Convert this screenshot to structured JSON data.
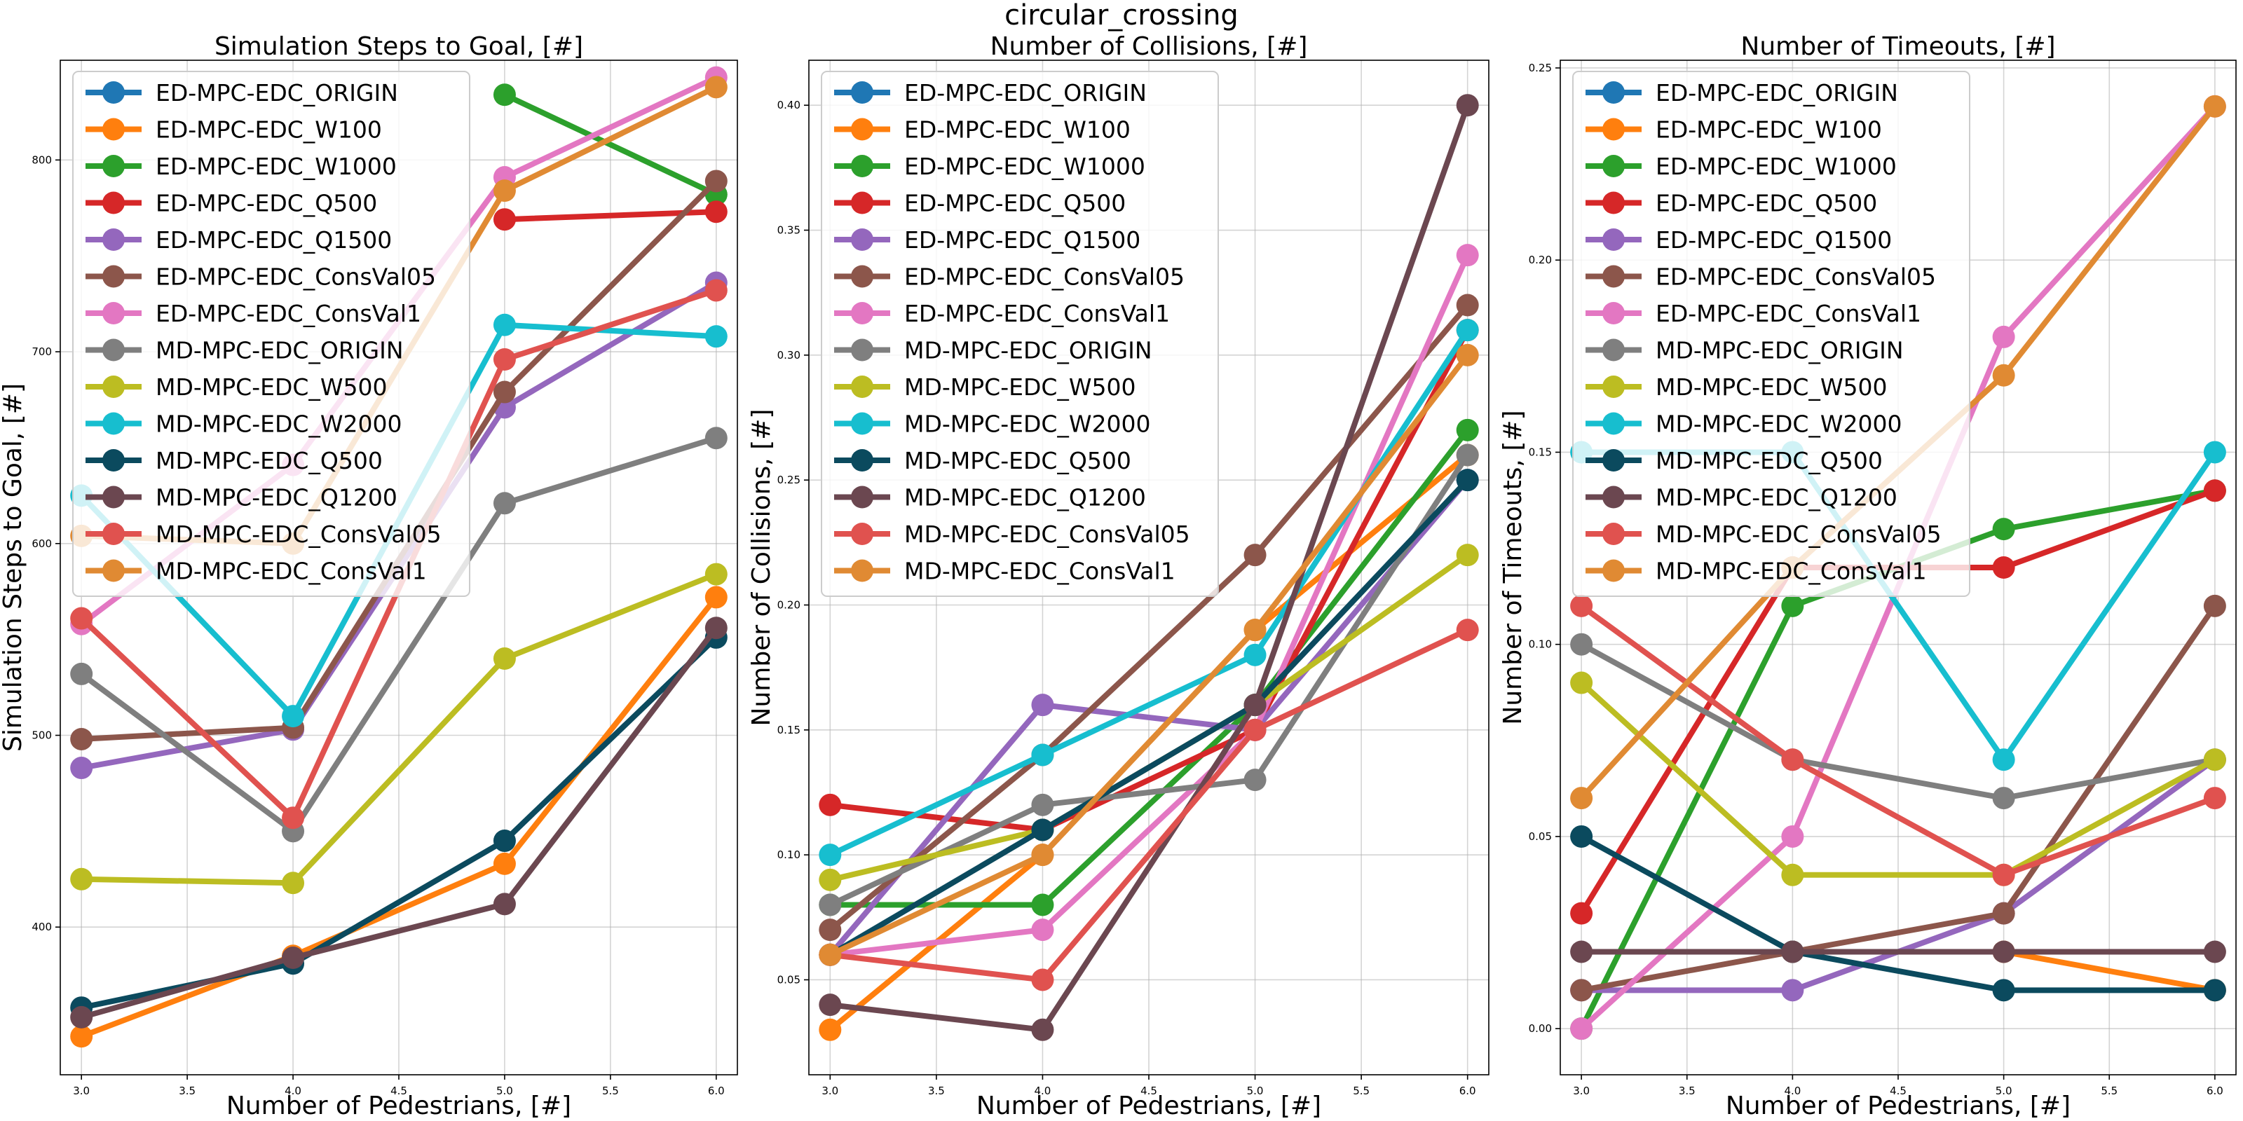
{
  "suptitle": "circular_crossing",
  "colors": {
    "ED-MPC-EDC_ORIGIN": "#1f77b4",
    "ED-MPC-EDC_W100": "#ff7f0e",
    "ED-MPC-EDC_W1000": "#2ca02c",
    "ED-MPC-EDC_Q500": "#d62728",
    "ED-MPC-EDC_Q1500": "#9467bd",
    "ED-MPC-EDC_ConsVal05": "#8c564b",
    "ED-MPC-EDC_ConsVal1": "#e377c2",
    "MD-MPC-EDC_ORIGIN": "#7f7f7f",
    "MD-MPC-EDC_W500": "#bcbd22",
    "MD-MPC-EDC_W2000": "#17becf",
    "MD-MPC-EDC_Q500": "#0b4a5e",
    "MD-MPC-EDC_Q1200": "#6b4750",
    "MD-MPC-EDC_ConsVal05": "#e0524f",
    "MD-MPC-EDC_ConsVal1": "#e08a33"
  },
  "chart_data": [
    {
      "type": "line",
      "title": "Simulation Steps to Goal, [#]",
      "xlabel": "Number of Pedestrians, [#]",
      "ylabel": "Simulation Steps to Goal, [#]",
      "x": [
        3,
        4,
        5,
        6
      ],
      "xlim": [
        2.9,
        6.1
      ],
      "ylim": [
        323,
        852
      ],
      "xticks": [
        "3.0",
        "3.5",
        "4.0",
        "4.5",
        "5.0",
        "5.5",
        "6.0"
      ],
      "yticks": [
        "400",
        "500",
        "600",
        "700",
        "800"
      ],
      "grid": true,
      "legend": "upper-left",
      "series": [
        {
          "name": "ED-MPC-EDC_ORIGIN",
          "values": [
            null,
            null,
            null,
            null
          ]
        },
        {
          "name": "ED-MPC-EDC_W100",
          "values": [
            343,
            385,
            433,
            572
          ]
        },
        {
          "name": "ED-MPC-EDC_W1000",
          "values": [
            null,
            null,
            834,
            782
          ]
        },
        {
          "name": "ED-MPC-EDC_Q500",
          "values": [
            null,
            null,
            769,
            773
          ]
        },
        {
          "name": "ED-MPC-EDC_Q1500",
          "values": [
            483,
            503,
            671,
            736
          ]
        },
        {
          "name": "ED-MPC-EDC_ConsVal05",
          "values": [
            498,
            504,
            679,
            789
          ]
        },
        {
          "name": "ED-MPC-EDC_ConsVal1",
          "values": [
            558,
            641,
            791,
            843
          ]
        },
        {
          "name": "MD-MPC-EDC_ORIGIN",
          "values": [
            532,
            450,
            621,
            655
          ]
        },
        {
          "name": "MD-MPC-EDC_W500",
          "values": [
            425,
            423,
            540,
            584
          ]
        },
        {
          "name": "MD-MPC-EDC_W2000",
          "values": [
            625,
            510,
            714,
            708
          ]
        },
        {
          "name": "MD-MPC-EDC_Q500",
          "values": [
            358,
            381,
            445,
            551
          ]
        },
        {
          "name": "MD-MPC-EDC_Q1200",
          "values": [
            353,
            384,
            412,
            556
          ]
        },
        {
          "name": "MD-MPC-EDC_ConsVal05",
          "values": [
            561,
            457,
            696,
            732
          ]
        },
        {
          "name": "MD-MPC-EDC_ConsVal1",
          "values": [
            604,
            600,
            784,
            838
          ]
        }
      ]
    },
    {
      "type": "line",
      "title": "Number of Collisions, [#]",
      "xlabel": "Number of Pedestrians, [#]",
      "ylabel": "Number of Collisions, [#]",
      "x": [
        3,
        4,
        5,
        6
      ],
      "xlim": [
        2.9,
        6.1
      ],
      "ylim": [
        0.012,
        0.418
      ],
      "xticks": [
        "3.0",
        "3.5",
        "4.0",
        "4.5",
        "5.0",
        "5.5",
        "6.0"
      ],
      "yticks": [
        "0.05",
        "0.10",
        "0.15",
        "0.20",
        "0.25",
        "0.30",
        "0.35",
        "0.40"
      ],
      "grid": true,
      "legend": "upper-left",
      "series": [
        {
          "name": "ED-MPC-EDC_ORIGIN",
          "values": [
            null,
            null,
            null,
            null
          ]
        },
        {
          "name": "ED-MPC-EDC_W100",
          "values": [
            0.03,
            0.1,
            0.19,
            0.26
          ]
        },
        {
          "name": "ED-MPC-EDC_W1000",
          "values": [
            0.08,
            0.08,
            0.16,
            0.27
          ]
        },
        {
          "name": "ED-MPC-EDC_Q500",
          "values": [
            0.12,
            0.11,
            0.15,
            0.31
          ]
        },
        {
          "name": "ED-MPC-EDC_Q1500",
          "values": [
            0.06,
            0.16,
            0.15,
            0.25
          ]
        },
        {
          "name": "ED-MPC-EDC_ConsVal05",
          "values": [
            0.07,
            0.14,
            0.22,
            0.32
          ]
        },
        {
          "name": "ED-MPC-EDC_ConsVal1",
          "values": [
            0.06,
            0.07,
            0.15,
            0.34
          ]
        },
        {
          "name": "MD-MPC-EDC_ORIGIN",
          "values": [
            0.08,
            0.12,
            0.13,
            0.26
          ]
        },
        {
          "name": "MD-MPC-EDC_W500",
          "values": [
            0.09,
            0.11,
            0.16,
            0.22
          ]
        },
        {
          "name": "MD-MPC-EDC_W2000",
          "values": [
            0.1,
            0.14,
            0.18,
            0.31
          ]
        },
        {
          "name": "MD-MPC-EDC_Q500",
          "values": [
            0.06,
            0.11,
            0.16,
            0.25
          ]
        },
        {
          "name": "MD-MPC-EDC_Q1200",
          "values": [
            0.04,
            0.03,
            0.16,
            0.4
          ]
        },
        {
          "name": "MD-MPC-EDC_ConsVal05",
          "values": [
            0.06,
            0.05,
            0.15,
            0.19
          ]
        },
        {
          "name": "MD-MPC-EDC_ConsVal1",
          "values": [
            0.06,
            0.1,
            0.19,
            0.3
          ]
        }
      ]
    },
    {
      "type": "line",
      "title": "Number of Timeouts, [#]",
      "xlabel": "Number of Pedestrians, [#]",
      "ylabel": "Number of Timeouts, [#]",
      "x": [
        3,
        4,
        5,
        6
      ],
      "xlim": [
        2.9,
        6.1
      ],
      "ylim": [
        -0.012,
        0.252
      ],
      "xticks": [
        "3.0",
        "3.5",
        "4.0",
        "4.5",
        "5.0",
        "5.5",
        "6.0"
      ],
      "yticks": [
        "0.00",
        "0.05",
        "0.10",
        "0.15",
        "0.20",
        "0.25"
      ],
      "grid": true,
      "legend": "upper-left",
      "series": [
        {
          "name": "ED-MPC-EDC_ORIGIN",
          "values": [
            null,
            null,
            null,
            null
          ]
        },
        {
          "name": "ED-MPC-EDC_W100",
          "values": [
            null,
            0.02,
            0.02,
            0.01
          ]
        },
        {
          "name": "ED-MPC-EDC_W1000",
          "values": [
            0.0,
            0.11,
            0.13,
            0.14
          ]
        },
        {
          "name": "ED-MPC-EDC_Q500",
          "values": [
            0.03,
            0.12,
            0.12,
            0.14
          ]
        },
        {
          "name": "ED-MPC-EDC_Q1500",
          "values": [
            0.01,
            0.01,
            0.03,
            0.07
          ]
        },
        {
          "name": "ED-MPC-EDC_ConsVal05",
          "values": [
            0.01,
            0.02,
            0.03,
            0.11
          ]
        },
        {
          "name": "ED-MPC-EDC_ConsVal1",
          "values": [
            0.0,
            0.05,
            0.18,
            0.24
          ]
        },
        {
          "name": "MD-MPC-EDC_ORIGIN",
          "values": [
            0.1,
            0.07,
            0.06,
            0.07
          ]
        },
        {
          "name": "MD-MPC-EDC_W500",
          "values": [
            0.09,
            0.04,
            0.04,
            0.07
          ]
        },
        {
          "name": "MD-MPC-EDC_W2000",
          "values": [
            0.15,
            0.15,
            0.07,
            0.15
          ]
        },
        {
          "name": "MD-MPC-EDC_Q500",
          "values": [
            0.05,
            0.02,
            0.01,
            0.01
          ]
        },
        {
          "name": "MD-MPC-EDC_Q1200",
          "values": [
            0.02,
            0.02,
            0.02,
            0.02
          ]
        },
        {
          "name": "MD-MPC-EDC_ConsVal05",
          "values": [
            0.11,
            0.07,
            0.04,
            0.06
          ]
        },
        {
          "name": "MD-MPC-EDC_ConsVal1",
          "values": [
            0.06,
            0.12,
            0.17,
            0.24
          ]
        }
      ]
    }
  ]
}
